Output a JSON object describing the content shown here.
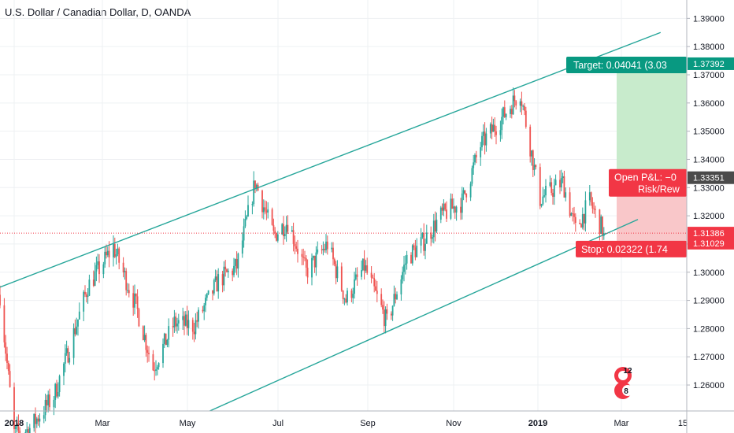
{
  "header": {
    "title": "U.S. Dollar / Canadian Dollar, D, OANDA"
  },
  "colors": {
    "up": "#26a69a",
    "down": "#ef5350",
    "channel": "#26a69a",
    "target": "#089981",
    "stop": "#f23645",
    "profit_zone": "#c8ebcc",
    "loss_zone": "#f9c7c9",
    "last_price": "#f23645",
    "pnl_tag": "#4a4a4a"
  },
  "chart_data": {
    "type": "candlestick",
    "title": "U.S. Dollar / Canadian Dollar, D, OANDA",
    "xlabel": "",
    "ylabel": "",
    "ylim": [
      1.2508,
      1.3954
    ],
    "grid": true,
    "x_tick_labels": [
      "2018",
      "Mar",
      "May",
      "Jul",
      "Sep",
      "Nov",
      "2019",
      "Mar",
      "15"
    ],
    "y_tick_labels": [
      "1.39000",
      "1.38000",
      "1.37000",
      "1.36000",
      "1.35000",
      "1.34000",
      "1.33000",
      "1.32000",
      "1.31000",
      "1.30000",
      "1.29000",
      "1.28000",
      "1.27000",
      "1.26000"
    ],
    "close_waypoints": [
      [
        "2017-12-29",
        1.292
      ],
      [
        "2018-01-08",
        1.243
      ],
      [
        "2018-01-18",
        1.244
      ],
      [
        "2018-02-05",
        1.256
      ],
      [
        "2018-02-14",
        1.27
      ],
      [
        "2018-03-01",
        1.295
      ],
      [
        "2018-03-19",
        1.309
      ],
      [
        "2018-04-04",
        1.288
      ],
      [
        "2018-04-16",
        1.266
      ],
      [
        "2018-05-01",
        1.282
      ],
      [
        "2018-05-15",
        1.281
      ],
      [
        "2018-06-01",
        1.297
      ],
      [
        "2018-06-14",
        1.302
      ],
      [
        "2018-06-27",
        1.332
      ],
      [
        "2018-07-10",
        1.313
      ],
      [
        "2018-07-20",
        1.318
      ],
      [
        "2018-08-02",
        1.3
      ],
      [
        "2018-08-17",
        1.31
      ],
      [
        "2018-08-30",
        1.29
      ],
      [
        "2018-09-12",
        1.302
      ],
      [
        "2018-09-28",
        1.282
      ],
      [
        "2018-10-12",
        1.305
      ],
      [
        "2018-10-24",
        1.311
      ],
      [
        "2018-11-05",
        1.32
      ],
      [
        "2018-11-20",
        1.325
      ],
      [
        "2018-12-03",
        1.345
      ],
      [
        "2018-12-20",
        1.356
      ],
      [
        "2018-12-31",
        1.364
      ],
      [
        "2019-01-08",
        1.342
      ],
      [
        "2019-01-14",
        1.326
      ],
      [
        "2019-01-30",
        1.332
      ],
      [
        "2019-02-08",
        1.315
      ],
      [
        "2019-02-18",
        1.325
      ],
      [
        "2019-02-28",
        1.3139
      ]
    ],
    "channel_upper": [
      [
        "2017-12-29",
        1.2947
      ],
      [
        "2019-04-09",
        1.385
      ]
    ],
    "channel_lower": [
      [
        "2018-05-26",
        1.2508
      ],
      [
        "2019-03-24",
        1.3187
      ]
    ],
    "long_position": {
      "entry": 1.33351,
      "target": 1.37392,
      "stop": 1.31029,
      "start": "2019-03-09",
      "end": "2019-04-24",
      "target_label": "Target: 0.04041 (3.03",
      "stop_label": "Stop: 0.02322 (1.74",
      "pnl_label_1": "Open P&L: −0",
      "pnl_label_2": "Risk/Rew"
    },
    "last_price": 1.31386,
    "price_tags": {
      "target": "1.37392",
      "pnl": "1.33351",
      "last": "1.31386",
      "stop": "1.31029"
    }
  },
  "logo": {
    "name": "tradingview-style-badge-icon",
    "digits": [
      "12",
      "8"
    ]
  }
}
